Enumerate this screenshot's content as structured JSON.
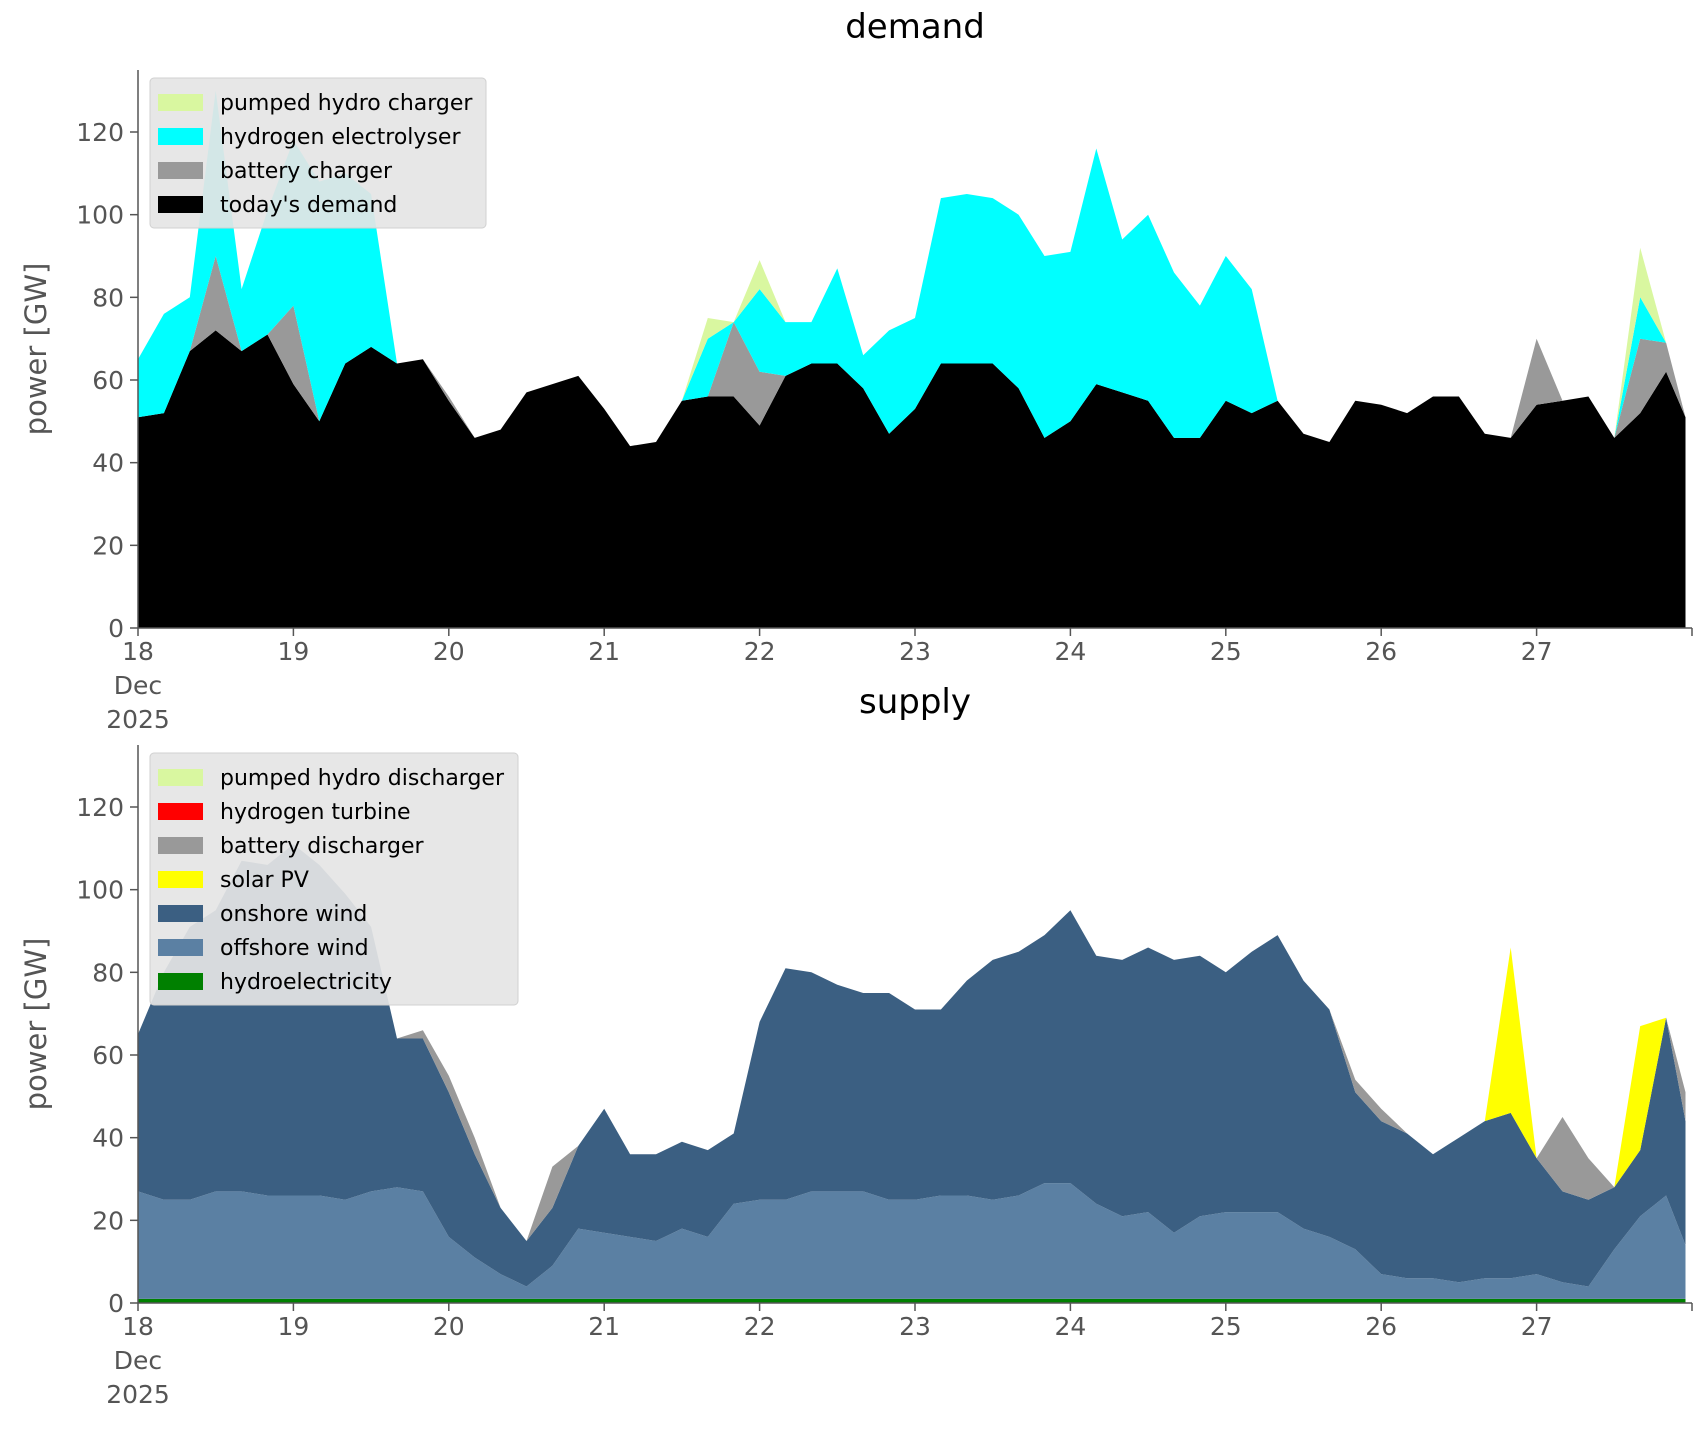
{
  "chart_data": [
    {
      "type": "area",
      "stacked": true,
      "title": "demand",
      "xlabel": "",
      "ylabel": "power [GW]",
      "ylim": [
        0,
        135
      ],
      "yticks": [
        0,
        20,
        40,
        60,
        80,
        100,
        120
      ],
      "xlim_days": [
        18,
        28
      ],
      "xticks": [
        "18",
        "19",
        "20",
        "21",
        "22",
        "23",
        "24",
        "25",
        "26",
        "27"
      ],
      "x_sublabels": [
        "Dec",
        "2025"
      ],
      "grid": false,
      "legend_position": "top-left",
      "x_hours": [
        0,
        4,
        8,
        12,
        16,
        20,
        24,
        28,
        32,
        36,
        40,
        44,
        48,
        52,
        56,
        60,
        64,
        68,
        72,
        76,
        80,
        84,
        88,
        92,
        96,
        100,
        104,
        108,
        112,
        116,
        120,
        124,
        128,
        132,
        136,
        140,
        144,
        148,
        152,
        156,
        160,
        164,
        168,
        172,
        176,
        180,
        184,
        188,
        192,
        196,
        200,
        204,
        208,
        212,
        216,
        220,
        224,
        228,
        232,
        236,
        239
      ],
      "series": [
        {
          "name": "today's demand",
          "color": "#000000",
          "values": [
            51,
            52,
            67,
            72,
            67,
            71,
            59,
            50,
            64,
            68,
            64,
            65,
            55,
            46,
            48,
            57,
            59,
            61,
            53,
            44,
            45,
            55,
            56,
            56,
            49,
            61,
            64,
            64,
            58,
            47,
            53,
            64,
            64,
            64,
            58,
            46,
            50,
            59,
            57,
            55,
            46,
            46,
            55,
            52,
            55,
            47,
            45,
            55,
            54,
            52,
            56,
            56,
            47,
            46,
            54,
            55,
            56,
            46,
            52,
            62,
            51
          ]
        },
        {
          "name": "battery charger",
          "color": "#999999",
          "values": [
            0,
            0,
            0,
            18,
            0,
            0,
            19,
            0,
            0,
            0,
            0,
            0,
            1,
            0,
            0,
            0,
            0,
            0,
            0,
            0,
            0,
            0,
            0,
            18,
            13,
            0,
            0,
            0,
            0,
            0,
            0,
            0,
            0,
            0,
            0,
            0,
            0,
            0,
            0,
            0,
            0,
            0,
            0,
            0,
            0,
            0,
            0,
            0,
            0,
            0,
            0,
            0,
            0,
            0,
            16,
            0,
            0,
            0,
            18,
            7,
            0
          ]
        },
        {
          "name": "hydrogen electrolyser",
          "color": "#00ffff",
          "values": [
            14,
            24,
            13,
            40,
            15,
            30,
            40,
            58,
            46,
            37,
            0,
            0,
            0,
            0,
            0,
            0,
            0,
            0,
            0,
            0,
            0,
            0,
            14,
            0,
            20,
            13,
            10,
            23,
            8,
            25,
            22,
            40,
            41,
            40,
            42,
            44,
            41,
            57,
            37,
            45,
            40,
            32,
            35,
            30,
            0,
            0,
            0,
            0,
            0,
            0,
            0,
            0,
            0,
            0,
            0,
            0,
            0,
            0,
            10,
            0,
            0
          ]
        },
        {
          "name": "pumped hydro charger",
          "color": "#d9f7a0",
          "values": [
            0,
            0,
            0,
            0,
            0,
            0,
            0,
            0,
            0,
            0,
            0,
            0,
            0,
            0,
            0,
            0,
            0,
            0,
            0,
            0,
            0,
            0,
            5,
            0,
            7,
            0,
            0,
            0,
            0,
            0,
            0,
            0,
            0,
            0,
            0,
            0,
            0,
            0,
            0,
            0,
            0,
            0,
            0,
            0,
            0,
            0,
            0,
            0,
            0,
            0,
            0,
            0,
            0,
            0,
            0,
            0,
            0,
            0,
            12,
            0,
            0
          ]
        }
      ]
    },
    {
      "type": "area",
      "stacked": true,
      "title": "supply",
      "xlabel": "",
      "ylabel": "power [GW]",
      "ylim": [
        0,
        135
      ],
      "yticks": [
        0,
        20,
        40,
        60,
        80,
        100,
        120
      ],
      "xlim_days": [
        18,
        28
      ],
      "xticks": [
        "18",
        "19",
        "20",
        "21",
        "22",
        "23",
        "24",
        "25",
        "26",
        "27"
      ],
      "x_sublabels": [
        "Dec",
        "2025"
      ],
      "grid": false,
      "legend_position": "top-left",
      "x_hours": [
        0,
        4,
        8,
        12,
        16,
        20,
        24,
        28,
        32,
        36,
        40,
        44,
        48,
        52,
        56,
        60,
        64,
        68,
        72,
        76,
        80,
        84,
        88,
        92,
        96,
        100,
        104,
        108,
        112,
        116,
        120,
        124,
        128,
        132,
        136,
        140,
        144,
        148,
        152,
        156,
        160,
        164,
        168,
        172,
        176,
        180,
        184,
        188,
        192,
        196,
        200,
        204,
        208,
        212,
        216,
        220,
        224,
        228,
        232,
        236,
        239
      ],
      "series": [
        {
          "name": "hydroelectricity",
          "color": "#008000",
          "values": [
            1,
            1,
            1,
            1,
            1,
            1,
            1,
            1,
            1,
            1,
            1,
            1,
            1,
            1,
            1,
            1,
            1,
            1,
            1,
            1,
            1,
            1,
            1,
            1,
            1,
            1,
            1,
            1,
            1,
            1,
            1,
            1,
            1,
            1,
            1,
            1,
            1,
            1,
            1,
            1,
            1,
            1,
            1,
            1,
            1,
            1,
            1,
            1,
            1,
            1,
            1,
            1,
            1,
            1,
            1,
            1,
            1,
            1,
            1,
            1,
            1
          ]
        },
        {
          "name": "offshore wind",
          "color": "#5b80a3",
          "values": [
            26,
            24,
            24,
            26,
            26,
            25,
            25,
            25,
            24,
            26,
            27,
            26,
            15,
            10,
            6,
            3,
            8,
            17,
            16,
            15,
            14,
            17,
            15,
            23,
            24,
            24,
            26,
            26,
            26,
            24,
            24,
            25,
            25,
            24,
            25,
            28,
            28,
            23,
            20,
            21,
            16,
            20,
            21,
            21,
            21,
            17,
            15,
            12,
            6,
            5,
            5,
            4,
            5,
            5,
            6,
            4,
            3,
            12,
            20,
            25,
            13
          ]
        },
        {
          "name": "onshore wind",
          "color": "#3b5f82",
          "values": [
            38,
            55,
            66,
            68,
            80,
            80,
            85,
            80,
            74,
            64,
            36,
            37,
            35,
            25,
            16,
            11,
            14,
            20,
            30,
            20,
            21,
            21,
            21,
            17,
            43,
            56,
            53,
            50,
            48,
            50,
            46,
            45,
            52,
            58,
            59,
            60,
            66,
            60,
            62,
            64,
            66,
            63,
            58,
            63,
            67,
            60,
            55,
            38,
            37,
            35,
            30,
            35,
            38,
            40,
            28,
            22,
            21,
            15,
            16,
            43,
            30
          ]
        },
        {
          "name": "solar PV",
          "color": "#ffff00",
          "values": [
            0,
            0,
            0,
            0,
            0,
            0,
            0,
            0,
            0,
            0,
            0,
            0,
            0,
            0,
            0,
            0,
            0,
            0,
            0,
            0,
            0,
            0,
            0,
            0,
            0,
            0,
            0,
            0,
            0,
            0,
            0,
            0,
            0,
            0,
            0,
            0,
            0,
            0,
            0,
            0,
            0,
            0,
            0,
            0,
            0,
            0,
            0,
            0,
            0,
            0,
            0,
            0,
            0,
            40,
            0,
            0,
            0,
            0,
            30,
            0,
            0
          ]
        },
        {
          "name": "battery discharger",
          "color": "#999999",
          "values": [
            0,
            0,
            0,
            0,
            0,
            0,
            0,
            0,
            0,
            0,
            0,
            2,
            4,
            4,
            0,
            0,
            10,
            0,
            0,
            0,
            0,
            0,
            0,
            0,
            0,
            0,
            0,
            0,
            0,
            0,
            0,
            0,
            0,
            0,
            0,
            0,
            0,
            0,
            0,
            0,
            0,
            0,
            0,
            0,
            0,
            0,
            0,
            3,
            3,
            0,
            0,
            0,
            0,
            0,
            0,
            18,
            10,
            0,
            0,
            0,
            7
          ]
        },
        {
          "name": "hydrogen turbine",
          "color": "#ff0000",
          "values": [
            0,
            0,
            0,
            0,
            0,
            0,
            0,
            0,
            0,
            0,
            0,
            0,
            0,
            0,
            0,
            0,
            0,
            0,
            0,
            0,
            0,
            0,
            0,
            0,
            0,
            0,
            0,
            0,
            0,
            0,
            0,
            0,
            0,
            0,
            0,
            0,
            0,
            0,
            0,
            0,
            0,
            0,
            0,
            0,
            0,
            0,
            0,
            0,
            0,
            0,
            0,
            0,
            0,
            0,
            0,
            0,
            0,
            0,
            0,
            0,
            0
          ]
        },
        {
          "name": "pumped hydro discharger",
          "color": "#d9f7a0",
          "values": [
            0,
            0,
            0,
            0,
            0,
            0,
            0,
            0,
            0,
            0,
            0,
            0,
            0,
            0,
            0,
            0,
            0,
            0,
            0,
            0,
            0,
            0,
            0,
            0,
            0,
            0,
            0,
            0,
            0,
            0,
            0,
            0,
            0,
            0,
            0,
            0,
            0,
            0,
            0,
            0,
            0,
            0,
            0,
            0,
            0,
            0,
            0,
            0,
            0,
            0,
            0,
            0,
            0,
            0,
            0,
            0,
            0,
            0,
            0,
            0,
            0
          ]
        }
      ]
    }
  ]
}
